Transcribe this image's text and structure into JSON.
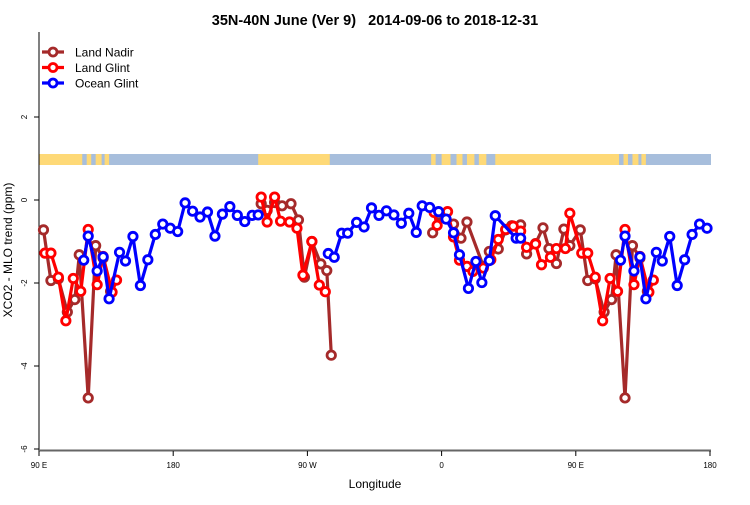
{
  "chart_data": {
    "type": "line",
    "title": "35N-40N June (Ver 9)   2014-09-06 to 2018-12-31",
    "xlabel": "Longitude",
    "ylabel": "XCO2 - MLO trend (ppm)",
    "ylim": [
      -6.1,
      4
    ],
    "xlim_deg_east": [
      90,
      540
    ],
    "x_ticks": [
      {
        "lon": 90,
        "label": "90 E"
      },
      {
        "lon": 180,
        "label": "180"
      },
      {
        "lon": -90,
        "label": "90 W"
      },
      {
        "lon": 0,
        "label": "0"
      },
      {
        "lon": 90,
        "label": "90 E"
      },
      {
        "lon": 180,
        "label": "180"
      }
    ],
    "y_ticks": [
      -6,
      -4,
      -2,
      0,
      2
    ],
    "legend_position": "top-left",
    "grid": false,
    "land_mask": {
      "land_color": "#fed977",
      "ocean_color": "#a7bedc",
      "land_spans_lon": [
        [
          90,
          119
        ],
        [
          122,
          125
        ],
        [
          128,
          132
        ],
        [
          134,
          137
        ],
        [
          -123,
          -75
        ],
        [
          -7,
          -4
        ],
        [
          0,
          6
        ],
        [
          10,
          14
        ],
        [
          17,
          22
        ],
        [
          25,
          30
        ],
        [
          36,
          114
        ]
      ]
    },
    "series": [
      {
        "name": "Land Nadir",
        "color": "#a52a2a",
        "points": [
          [
            93,
            -0.72
          ],
          [
            98,
            -1.94
          ],
          [
            103,
            -1.9
          ],
          [
            109,
            -2.7
          ],
          [
            114,
            -2.4
          ],
          [
            117,
            -1.32
          ],
          [
            123,
            -4.77
          ],
          [
            128,
            -1.1
          ],
          [
            133,
            -1.4
          ],
          [
            138,
            -2.2
          ],
          [
            -121,
            -0.09
          ],
          [
            -117,
            -0.25
          ],
          [
            -112,
            -0.06
          ],
          [
            -107,
            -0.14
          ],
          [
            -101,
            -0.09
          ],
          [
            -96,
            -0.48
          ],
          [
            -92,
            -1.86
          ],
          [
            -87,
            -1.0
          ],
          [
            -81,
            -1.54
          ],
          [
            -77,
            -1.7
          ],
          [
            -74,
            -3.74
          ],
          [
            -6,
            -0.79
          ],
          [
            -2,
            -0.35
          ],
          [
            8,
            -0.58
          ],
          [
            13,
            -0.92
          ],
          [
            17,
            -0.53
          ],
          [
            28,
            -1.6
          ],
          [
            32,
            -1.24
          ],
          [
            38,
            -1.18
          ],
          [
            43,
            -0.72
          ],
          [
            47,
            -0.62
          ],
          [
            53,
            -0.6
          ],
          [
            57,
            -1.3
          ],
          [
            63,
            -1.05
          ],
          [
            68,
            -0.67
          ],
          [
            72,
            -1.17
          ],
          [
            77,
            -1.53
          ],
          [
            82,
            -0.7
          ],
          [
            86,
            -1.1
          ]
        ]
      },
      {
        "name": "Land Glint",
        "color": "#ff0000",
        "points": [
          [
            94,
            -1.28
          ],
          [
            98,
            -1.28
          ],
          [
            103,
            -1.86
          ],
          [
            108,
            -2.91
          ],
          [
            113,
            -1.89
          ],
          [
            118,
            -2.2
          ],
          [
            123,
            -0.71
          ],
          [
            129,
            -2.04
          ],
          [
            133,
            -1.36
          ],
          [
            139,
            -2.22
          ],
          [
            142,
            -1.93
          ],
          [
            -121,
            0.07
          ],
          [
            -117,
            -0.53
          ],
          [
            -112,
            0.07
          ],
          [
            -108,
            -0.51
          ],
          [
            -102,
            -0.53
          ],
          [
            -97,
            -0.68
          ],
          [
            -93,
            -1.81
          ],
          [
            -87,
            -1.0
          ],
          [
            -82,
            -2.05
          ],
          [
            -78,
            -2.21
          ],
          [
            -5,
            -0.3
          ],
          [
            -3,
            -0.61
          ],
          [
            4,
            -0.28
          ],
          [
            8,
            -0.89
          ],
          [
            12,
            -1.45
          ],
          [
            17,
            -1.6
          ],
          [
            21,
            -1.72
          ],
          [
            28,
            -1.64
          ],
          [
            33,
            -1.44
          ],
          [
            38,
            -0.95
          ],
          [
            43,
            -0.71
          ],
          [
            48,
            -0.63
          ],
          [
            53,
            -0.75
          ],
          [
            57,
            -1.14
          ],
          [
            63,
            -1.06
          ],
          [
            67,
            -1.56
          ],
          [
            73,
            -1.38
          ],
          [
            77,
            -1.17
          ],
          [
            83,
            -1.17
          ],
          [
            86,
            -0.32
          ]
        ]
      },
      {
        "name": "Ocean Glint",
        "color": "#0000ff",
        "points": [
          [
            120,
            -1.45
          ],
          [
            123,
            -0.87
          ],
          [
            129,
            -1.71
          ],
          [
            133,
            -1.37
          ],
          [
            137,
            -2.38
          ],
          [
            144,
            -1.26
          ],
          [
            148,
            -1.47
          ],
          [
            153,
            -0.88
          ],
          [
            158,
            -2.06
          ],
          [
            163,
            -1.44
          ],
          [
            168,
            -0.83
          ],
          [
            173,
            -0.58
          ],
          [
            178,
            -0.68
          ],
          [
            -177,
            -0.76
          ],
          [
            -172,
            -0.07
          ],
          [
            -167,
            -0.27
          ],
          [
            -162,
            -0.41
          ],
          [
            -157,
            -0.29
          ],
          [
            -152,
            -0.87
          ],
          [
            -147,
            -0.34
          ],
          [
            -142,
            -0.16
          ],
          [
            -137,
            -0.37
          ],
          [
            -132,
            -0.52
          ],
          [
            -127,
            -0.37
          ],
          [
            -123,
            -0.36
          ],
          [
            -76,
            -1.29
          ],
          [
            -72,
            -1.38
          ],
          [
            -67,
            -0.8
          ],
          [
            -63,
            -0.8
          ],
          [
            -57,
            -0.54
          ],
          [
            -52,
            -0.65
          ],
          [
            -47,
            -0.19
          ],
          [
            -42,
            -0.37
          ],
          [
            -37,
            -0.26
          ],
          [
            -32,
            -0.36
          ],
          [
            -27,
            -0.56
          ],
          [
            -22,
            -0.32
          ],
          [
            -17,
            -0.78
          ],
          [
            -13,
            -0.14
          ],
          [
            -8,
            -0.18
          ],
          [
            -2,
            -0.28
          ],
          [
            3,
            -0.46
          ],
          [
            8,
            -0.79
          ],
          [
            12,
            -1.32
          ],
          [
            18,
            -2.13
          ],
          [
            23,
            -1.48
          ],
          [
            27,
            -1.99
          ],
          [
            32,
            -1.46
          ],
          [
            36,
            -0.38
          ],
          [
            50,
            -0.92
          ],
          [
            53,
            -0.92
          ]
        ]
      }
    ]
  }
}
